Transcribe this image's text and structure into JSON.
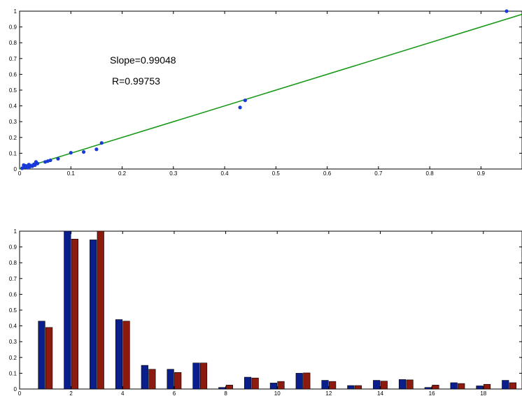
{
  "chart_data": [
    {
      "type": "scatter",
      "title": "",
      "xlabel": "",
      "ylabel": "",
      "xlim": [
        0,
        0.98
      ],
      "ylim": [
        0,
        1
      ],
      "xticks": [
        "0",
        "0.1",
        "0.2",
        "0.3",
        "0.4",
        "0.5",
        "0.6",
        "0.7",
        "0.8",
        "0.9"
      ],
      "xtick_values": [
        0,
        0.1,
        0.2,
        0.3,
        0.4,
        0.5,
        0.6,
        0.7,
        0.8,
        0.9
      ],
      "yticks": [
        "0",
        "0.1",
        "0.2",
        "0.3",
        "0.4",
        "0.5",
        "0.6",
        "0.7",
        "0.8",
        "0.9",
        "1"
      ],
      "ytick_values": [
        0,
        0.1,
        0.2,
        0.3,
        0.4,
        0.5,
        0.6,
        0.7,
        0.8,
        0.9,
        1
      ],
      "points": [
        {
          "x": 0.005,
          "y": 0.005
        },
        {
          "x": 0.008,
          "y": 0.025
        },
        {
          "x": 0.01,
          "y": 0.012
        },
        {
          "x": 0.012,
          "y": 0.02
        },
        {
          "x": 0.015,
          "y": 0.008
        },
        {
          "x": 0.018,
          "y": 0.028
        },
        {
          "x": 0.02,
          "y": 0.015
        },
        {
          "x": 0.022,
          "y": 0.022
        },
        {
          "x": 0.025,
          "y": 0.018
        },
        {
          "x": 0.028,
          "y": 0.03
        },
        {
          "x": 0.03,
          "y": 0.025
        },
        {
          "x": 0.032,
          "y": 0.045
        },
        {
          "x": 0.035,
          "y": 0.035
        },
        {
          "x": 0.05,
          "y": 0.045
        },
        {
          "x": 0.055,
          "y": 0.05
        },
        {
          "x": 0.06,
          "y": 0.055
        },
        {
          "x": 0.075,
          "y": 0.065
        },
        {
          "x": 0.1,
          "y": 0.103
        },
        {
          "x": 0.125,
          "y": 0.108
        },
        {
          "x": 0.15,
          "y": 0.125
        },
        {
          "x": 0.16,
          "y": 0.165
        },
        {
          "x": 0.43,
          "y": 0.39
        },
        {
          "x": 0.44,
          "y": 0.435
        },
        {
          "x": 0.95,
          "y": 1.0
        }
      ],
      "fit_line": {
        "x": [
          0,
          0.98
        ],
        "y": [
          0,
          0.98
        ],
        "color": "#1a9a1a"
      },
      "point_color": "#1a3ad8",
      "annotations": [
        "Slope=0.99048",
        "R=0.99753"
      ]
    },
    {
      "type": "bar",
      "title": "",
      "xlabel": "",
      "ylabel": "",
      "xlim": [
        0,
        19.5
      ],
      "ylim": [
        0,
        1
      ],
      "xticks": [
        "0",
        "2",
        "4",
        "6",
        "8",
        "10",
        "12",
        "14",
        "16",
        "18"
      ],
      "xtick_values": [
        0,
        2,
        4,
        6,
        8,
        10,
        12,
        14,
        16,
        18
      ],
      "yticks": [
        "0",
        "0.1",
        "0.2",
        "0.3",
        "0.4",
        "0.5",
        "0.6",
        "0.7",
        "0.8",
        "0.9",
        "1"
      ],
      "ytick_values": [
        0,
        0.1,
        0.2,
        0.3,
        0.4,
        0.5,
        0.6,
        0.7,
        0.8,
        0.9,
        1
      ],
      "categories": [
        1,
        2,
        3,
        4,
        5,
        6,
        7,
        8,
        9,
        10,
        11,
        12,
        13,
        14,
        15,
        16,
        17,
        18,
        19
      ],
      "series": [
        {
          "color": "#0a1e8c",
          "values": [
            0.43,
            1.0,
            0.945,
            0.44,
            0.15,
            0.125,
            0.165,
            0.01,
            0.075,
            0.038,
            0.1,
            0.055,
            0.022,
            0.055,
            0.06,
            0.01,
            0.04,
            0.02,
            0.055
          ]
        },
        {
          "color": "#8c1a0e",
          "values": [
            0.39,
            0.95,
            1.0,
            0.43,
            0.125,
            0.105,
            0.165,
            0.025,
            0.07,
            0.048,
            0.102,
            0.048,
            0.022,
            0.05,
            0.058,
            0.025,
            0.035,
            0.03,
            0.04
          ]
        }
      ]
    }
  ]
}
